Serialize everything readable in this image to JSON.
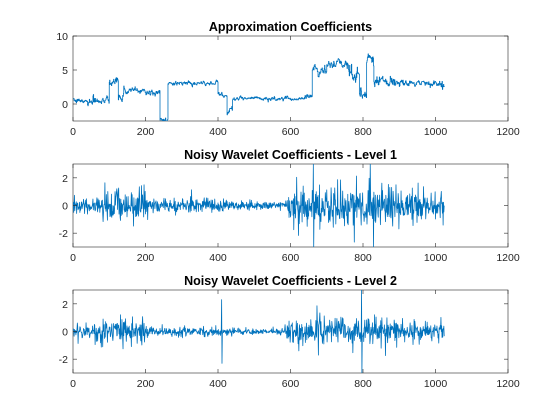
{
  "chart_data": [
    {
      "type": "line",
      "title": "Approximation Coefficients",
      "xlim": [
        0,
        1200
      ],
      "ylim": [
        -2.5,
        10
      ],
      "xticks": [
        0,
        200,
        400,
        600,
        800,
        1000,
        1200
      ],
      "yticks": [
        0,
        5,
        10
      ],
      "series_color": "#0072BD",
      "n_points": 1024,
      "step_style": true,
      "segments": [
        {
          "x_start": 0,
          "x_end": 40,
          "level": 0.4,
          "noise": 0.4
        },
        {
          "x_start": 40,
          "x_end": 100,
          "level": 0.6,
          "noise": 0.7
        },
        {
          "x_start": 100,
          "x_end": 125,
          "level": 3.5,
          "noise": 0.8
        },
        {
          "x_start": 125,
          "x_end": 140,
          "level": 0.8,
          "noise": 0.6
        },
        {
          "x_start": 140,
          "x_end": 200,
          "level": 2.0,
          "noise": 0.5
        },
        {
          "x_start": 200,
          "x_end": 240,
          "level": 1.8,
          "noise": 0.6
        },
        {
          "x_start": 240,
          "x_end": 262,
          "level": -2.3,
          "noise": 0.4
        },
        {
          "x_start": 262,
          "x_end": 400,
          "level": 3.0,
          "noise": 0.3
        },
        {
          "x_start": 400,
          "x_end": 425,
          "level": 1.4,
          "noise": 0.5
        },
        {
          "x_start": 425,
          "x_end": 440,
          "level": -1.0,
          "noise": 0.6
        },
        {
          "x_start": 440,
          "x_end": 640,
          "level": 0.8,
          "noise": 0.3
        },
        {
          "x_start": 640,
          "x_end": 660,
          "level": 1.2,
          "noise": 0.4
        },
        {
          "x_start": 660,
          "x_end": 700,
          "level": 5.0,
          "noise": 0.8
        },
        {
          "x_start": 700,
          "x_end": 760,
          "level": 5.8,
          "noise": 0.6
        },
        {
          "x_start": 760,
          "x_end": 790,
          "level": 4.5,
          "noise": 1.2
        },
        {
          "x_start": 790,
          "x_end": 810,
          "level": 1.5,
          "noise": 1.0
        },
        {
          "x_start": 810,
          "x_end": 830,
          "level": 6.8,
          "noise": 0.8
        },
        {
          "x_start": 830,
          "x_end": 880,
          "level": 3.5,
          "noise": 0.7
        },
        {
          "x_start": 880,
          "x_end": 1024,
          "level": 3.0,
          "noise": 0.5
        }
      ]
    },
    {
      "type": "line",
      "title": "Noisy Wavelet Coefficients - Level 1",
      "xlim": [
        0,
        1200
      ],
      "ylim": [
        -3,
        3
      ],
      "xticks": [
        0,
        200,
        400,
        600,
        800,
        1000,
        1200
      ],
      "yticks": [
        -2,
        0,
        2
      ],
      "series_color": "#0072BD",
      "n_points": 1024,
      "amplitude_profile": [
        {
          "x_start": 0,
          "x_end": 80,
          "amp": 0.45
        },
        {
          "x_start": 80,
          "x_end": 210,
          "amp": 1.1
        },
        {
          "x_start": 210,
          "x_end": 430,
          "amp": 0.45
        },
        {
          "x_start": 430,
          "x_end": 590,
          "amp": 0.25
        },
        {
          "x_start": 590,
          "x_end": 900,
          "amp": 1.2
        },
        {
          "x_start": 900,
          "x_end": 1024,
          "amp": 0.9
        }
      ],
      "spikes": [
        {
          "x": 663,
          "y": 3.0
        },
        {
          "x": 664,
          "y": -3.0
        },
        {
          "x": 820,
          "y": 3.0
        },
        {
          "x": 829,
          "y": -3.0
        }
      ]
    },
    {
      "type": "line",
      "title": "Noisy Wavelet Coefficients - Level 2",
      "xlim": [
        0,
        1200
      ],
      "ylim": [
        -3,
        3
      ],
      "xticks": [
        0,
        200,
        400,
        600,
        800,
        1000,
        1200
      ],
      "yticks": [
        -2,
        0,
        2
      ],
      "series_color": "#0072BD",
      "n_points": 1024,
      "amplitude_profile": [
        {
          "x_start": 0,
          "x_end": 60,
          "amp": 0.4
        },
        {
          "x_start": 60,
          "x_end": 200,
          "amp": 0.75
        },
        {
          "x_start": 200,
          "x_end": 420,
          "amp": 0.3
        },
        {
          "x_start": 420,
          "x_end": 590,
          "amp": 0.2
        },
        {
          "x_start": 590,
          "x_end": 900,
          "amp": 0.8
        },
        {
          "x_start": 900,
          "x_end": 1024,
          "amp": 0.55
        }
      ],
      "spikes": [
        {
          "x": 410,
          "y": 2.3
        },
        {
          "x": 411,
          "y": -2.3
        },
        {
          "x": 796,
          "y": 3.0
        },
        {
          "x": 797,
          "y": -3.0
        }
      ]
    }
  ]
}
